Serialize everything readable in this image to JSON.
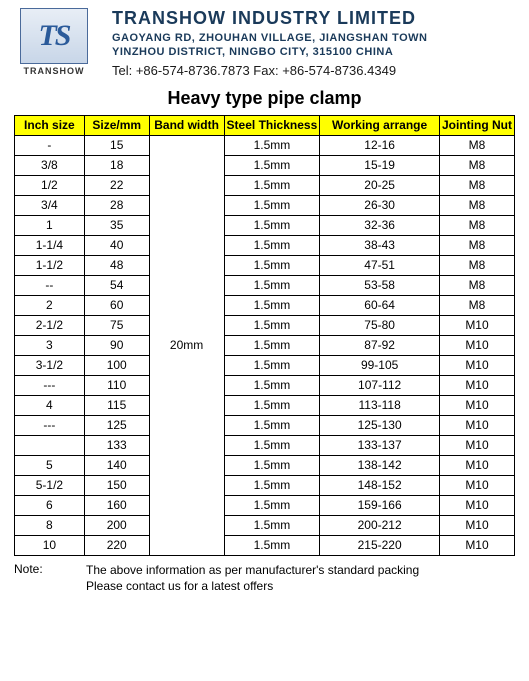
{
  "header": {
    "logo_text": "TS",
    "logo_label": "TRANSHOW",
    "company_name": "TRANSHOW INDUSTRY LIMITED",
    "address_line1": "GAOYANG RD, ZHOUHAN VILLAGE, JIANGSHAN TOWN",
    "address_line2": "YINZHOU DISTRICT,  NINGBO CITY,  315100  CHINA",
    "contact": "Tel: +86-574-8736.7873 Fax: +86-574-8736.4349"
  },
  "title": "Heavy type pipe clamp",
  "table": {
    "columns": [
      "Inch size",
      "Size/mm",
      "Band width",
      "Steel Thickness",
      "Working arrange",
      "Jointing Nut"
    ],
    "widths": [
      "14%",
      "13%",
      "15%",
      "19%",
      "24%",
      "15%"
    ],
    "band_width": "20mm",
    "rows": [
      {
        "inch": "-",
        "size": "15",
        "thick": "1.5mm",
        "work": "12-16",
        "nut": "M8"
      },
      {
        "inch": "3/8",
        "size": "18",
        "thick": "1.5mm",
        "work": "15-19",
        "nut": "M8"
      },
      {
        "inch": "1/2",
        "size": "22",
        "thick": "1.5mm",
        "work": "20-25",
        "nut": "M8"
      },
      {
        "inch": "3/4",
        "size": "28",
        "thick": "1.5mm",
        "work": "26-30",
        "nut": "M8"
      },
      {
        "inch": "1",
        "size": "35",
        "thick": "1.5mm",
        "work": "32-36",
        "nut": "M8"
      },
      {
        "inch": "1-1/4",
        "size": "40",
        "thick": "1.5mm",
        "work": "38-43",
        "nut": "M8"
      },
      {
        "inch": "1-1/2",
        "size": "48",
        "thick": "1.5mm",
        "work": "47-51",
        "nut": "M8"
      },
      {
        "inch": "--",
        "size": "54",
        "thick": "1.5mm",
        "work": "53-58",
        "nut": "M8"
      },
      {
        "inch": "2",
        "size": "60",
        "thick": "1.5mm",
        "work": "60-64",
        "nut": "M8"
      },
      {
        "inch": "2-1/2",
        "size": "75",
        "thick": "1.5mm",
        "work": "75-80",
        "nut": "M10"
      },
      {
        "inch": "3",
        "size": "90",
        "thick": "1.5mm",
        "work": "87-92",
        "nut": "M10"
      },
      {
        "inch": "3-1/2",
        "size": "100",
        "thick": "1.5mm",
        "work": "99-105",
        "nut": "M10"
      },
      {
        "inch": "---",
        "size": "110",
        "thick": "1.5mm",
        "work": "107-112",
        "nut": "M10"
      },
      {
        "inch": "4",
        "size": "115",
        "thick": "1.5mm",
        "work": "113-118",
        "nut": "M10"
      },
      {
        "inch": "---",
        "size": "125",
        "thick": "1.5mm",
        "work": "125-130",
        "nut": "M10"
      },
      {
        "inch": "",
        "size": "133",
        "thick": "1.5mm",
        "work": "133-137",
        "nut": "M10"
      },
      {
        "inch": "5",
        "size": "140",
        "thick": "1.5mm",
        "work": "138-142",
        "nut": "M10"
      },
      {
        "inch": "5-1/2",
        "size": "150",
        "thick": "1.5mm",
        "work": "148-152",
        "nut": "M10"
      },
      {
        "inch": "6",
        "size": "160",
        "thick": "1.5mm",
        "work": "159-166",
        "nut": "M10"
      },
      {
        "inch": "8",
        "size": "200",
        "thick": "1.5mm",
        "work": "200-212",
        "nut": "M10"
      },
      {
        "inch": "10",
        "size": "220",
        "thick": "1.5mm",
        "work": "215-220",
        "nut": "M10"
      }
    ]
  },
  "note": {
    "label": "Note:",
    "line1": "The above information as per manufacturer's standard packing",
    "line2": "Please contact us for a latest offers"
  },
  "colors": {
    "header_bg": "#ffff00",
    "border": "#000000",
    "brand": "#1a3a5a"
  }
}
